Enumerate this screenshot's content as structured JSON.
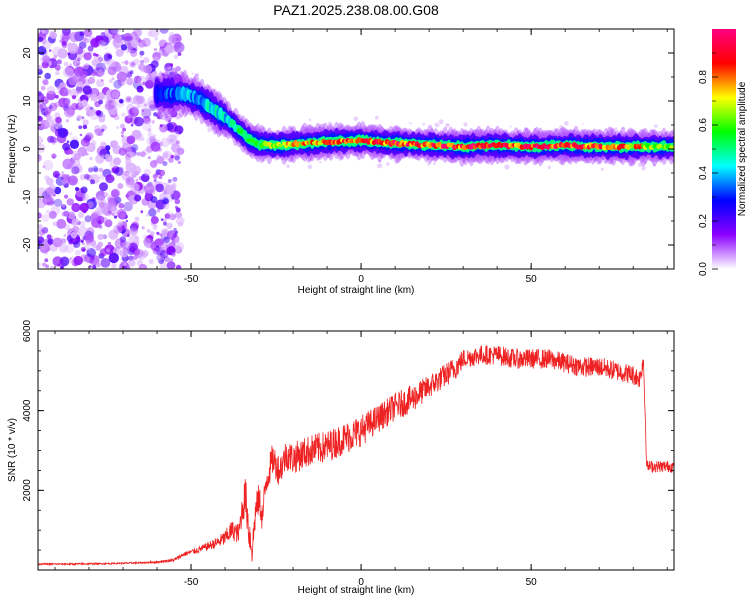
{
  "title": "PAZ1.2025.238.08.00.G08",
  "chart_data": [
    {
      "type": "heatmap",
      "title": "PAZ1.2025.238.08.00.G08",
      "xlabel": "Height of straight line (km)",
      "ylabel": "Frequency (Hz)",
      "xlim": [
        -95,
        92
      ],
      "ylim": [
        -25,
        25
      ],
      "xticks": [
        "-50",
        "0",
        "50"
      ],
      "xtick_values": [
        -50,
        0,
        50
      ],
      "yticks": [
        "-20",
        "-10",
        "0",
        "10",
        "20"
      ],
      "ytick_values": [
        -20,
        -10,
        0,
        10,
        20
      ],
      "grid": false,
      "ridge": {
        "x": [
          -58,
          -52,
          -48,
          -44,
          -40,
          -36,
          -33,
          -30,
          -25,
          -20,
          -10,
          0,
          10,
          20,
          30,
          40,
          50,
          60,
          70,
          80,
          92
        ],
        "y": [
          11.5,
          11.5,
          10.5,
          8.5,
          6.5,
          4,
          2,
          1,
          0.8,
          1,
          1.5,
          1.8,
          1.2,
          0.8,
          0.5,
          0.8,
          0.5,
          0.7,
          0.5,
          0.5,
          0.5
        ],
        "amplitude": [
          0.3,
          0.45,
          0.35,
          0.5,
          0.45,
          0.55,
          0.6,
          0.65,
          0.7,
          0.75,
          0.85,
          0.9,
          0.95,
          0.9,
          0.95,
          0.9,
          1.0,
          0.95,
          0.9,
          0.85,
          0.6
        ]
      },
      "colorbar": {
        "label": "Normalized spectral amplitude",
        "range": [
          0,
          1
        ],
        "ticks": [
          "0.0",
          "0.2",
          "0.4",
          "0.6",
          "0.8"
        ],
        "tick_values": [
          0,
          0.2,
          0.4,
          0.6,
          0.8
        ],
        "colors": [
          "#ffffff",
          "#8a00ff",
          "#0000ff",
          "#00ffff",
          "#00ff00",
          "#ffff00",
          "#ff0000",
          "#ff0080"
        ]
      }
    },
    {
      "type": "line",
      "xlabel": "Height of straight line (km)",
      "ylabel": "SNR (10 * v/v)",
      "xlim": [
        -95,
        92
      ],
      "ylim": [
        0,
        6000
      ],
      "xticks": [
        "-50",
        "0",
        "50"
      ],
      "xtick_values": [
        -50,
        0,
        50
      ],
      "yticks": [
        "2000",
        "4000",
        "6000"
      ],
      "ytick_values": [
        2000,
        4000,
        6000
      ],
      "grid": false,
      "series": [
        {
          "color": "#ee2222",
          "x": [
            -95,
            -85,
            -75,
            -65,
            -60,
            -55,
            -52,
            -48,
            -45,
            -42,
            -40,
            -38,
            -36,
            -35,
            -34,
            -33,
            -32,
            -31,
            -30,
            -29,
            -28,
            -26,
            -24,
            -22,
            -20,
            -15,
            -10,
            -5,
            0,
            5,
            10,
            15,
            20,
            25,
            28,
            30,
            35,
            40,
            45,
            50,
            55,
            60,
            65,
            70,
            75,
            80,
            82,
            83,
            84,
            85,
            88,
            92
          ],
          "y": [
            150,
            150,
            160,
            180,
            200,
            250,
            400,
            500,
            600,
            700,
            800,
            1000,
            900,
            1500,
            1900,
            1000,
            500,
            1500,
            1800,
            1300,
            2200,
            2800,
            2500,
            2900,
            2800,
            3000,
            3100,
            3300,
            3500,
            3800,
            4100,
            4300,
            4600,
            4900,
            5100,
            5300,
            5400,
            5400,
            5300,
            5300,
            5300,
            5200,
            5100,
            5100,
            5000,
            4900,
            4800,
            5300,
            2600,
            2600,
            2600,
            2600
          ],
          "noise": [
            20,
            20,
            20,
            20,
            25,
            40,
            60,
            80,
            100,
            150,
            200,
            250,
            250,
            400,
            500,
            500,
            400,
            400,
            400,
            400,
            400,
            400,
            400,
            400,
            400,
            400,
            400,
            400,
            400,
            350,
            350,
            350,
            300,
            300,
            300,
            250,
            250,
            250,
            250,
            250,
            250,
            250,
            250,
            250,
            250,
            250,
            250,
            250,
            150,
            150,
            150,
            150
          ]
        }
      ]
    }
  ]
}
